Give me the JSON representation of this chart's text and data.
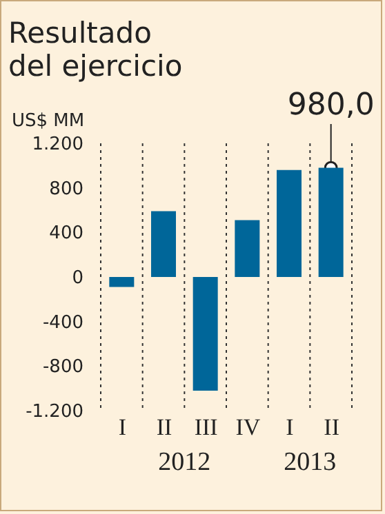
{
  "chart_data": {
    "type": "bar",
    "title": "Resultado\ndel ejercicio",
    "ylabel": "US$ MM",
    "categories": [
      "I",
      "II",
      "III",
      "IV",
      "I",
      "II"
    ],
    "values": [
      -90,
      590,
      -1020,
      510,
      960,
      980
    ],
    "value_labels": [
      null,
      null,
      null,
      null,
      null,
      "980,0"
    ],
    "color": "#006699",
    "ylim": [
      -1200,
      1200
    ],
    "yticks": [
      {
        "value": -1200,
        "label": "-1.200"
      },
      {
        "value": -800,
        "label": "-800"
      },
      {
        "value": -400,
        "label": "-400"
      },
      0,
      400,
      800,
      {
        "value": 1200,
        "label": "1.200"
      }
    ],
    "annotations": [
      "2012",
      "2013"
    ],
    "grid": "x",
    "legend": false
  }
}
